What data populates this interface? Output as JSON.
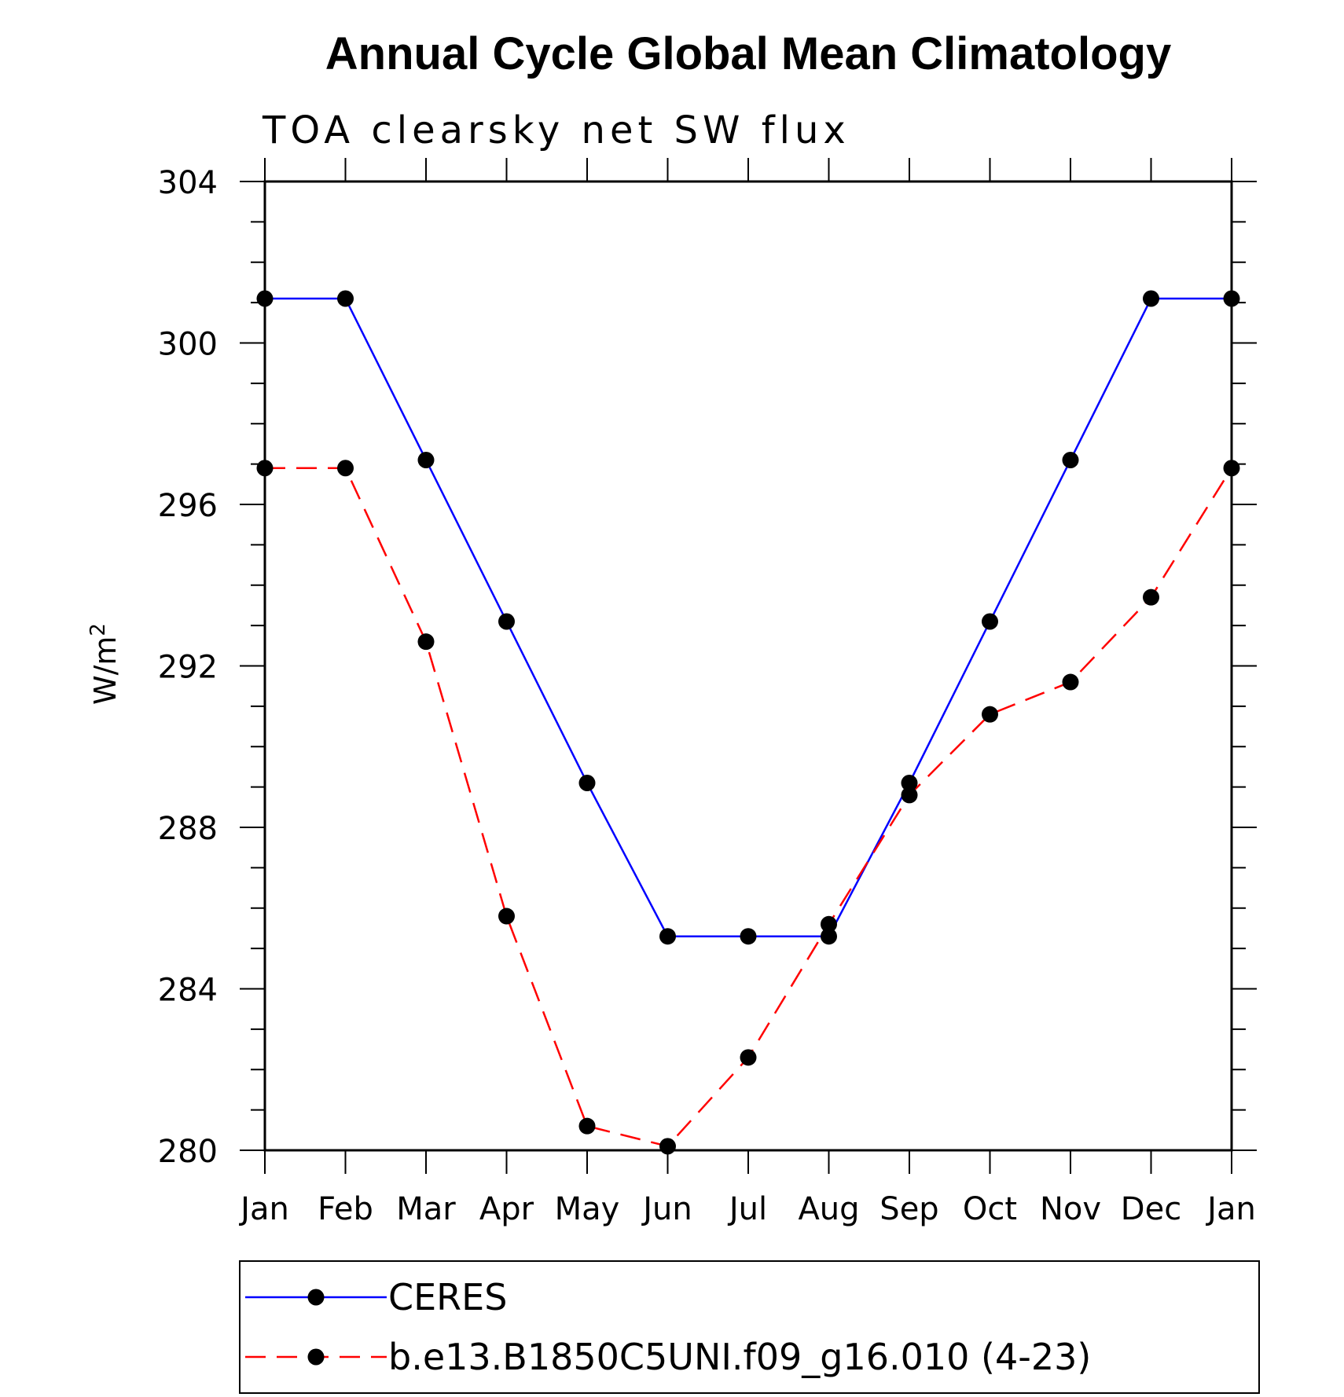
{
  "chart_data": {
    "type": "line",
    "title": "Annual Cycle Global Mean Climatology",
    "subtitle": "TOA clearsky net SW flux",
    "ylabel_base": "W/m",
    "ylabel_sup": "2",
    "xlabel": "",
    "categories": [
      "Jan",
      "Feb",
      "Mar",
      "Apr",
      "May",
      "Jun",
      "Jul",
      "Aug",
      "Sep",
      "Oct",
      "Nov",
      "Dec",
      "Jan"
    ],
    "ylim": [
      280,
      304
    ],
    "yticks": [
      280,
      284,
      288,
      292,
      296,
      300,
      304
    ],
    "grid": false,
    "legend_placement": "bottom",
    "series": [
      {
        "name": "CERES",
        "color": "#0000ff",
        "dash": "solid",
        "values": [
          301.1,
          301.1,
          297.1,
          293.1,
          289.1,
          285.3,
          285.3,
          285.3,
          289.1,
          293.1,
          297.1,
          301.1,
          301.1
        ]
      },
      {
        "name": "b.e13.B1850C5UNI.f09_g16.010 (4-23)",
        "color": "#ff0000",
        "dash": "dashed",
        "values": [
          296.9,
          296.9,
          292.6,
          285.8,
          280.6,
          280.1,
          282.3,
          285.6,
          288.8,
          290.8,
          291.6,
          293.7,
          296.9
        ]
      }
    ]
  }
}
